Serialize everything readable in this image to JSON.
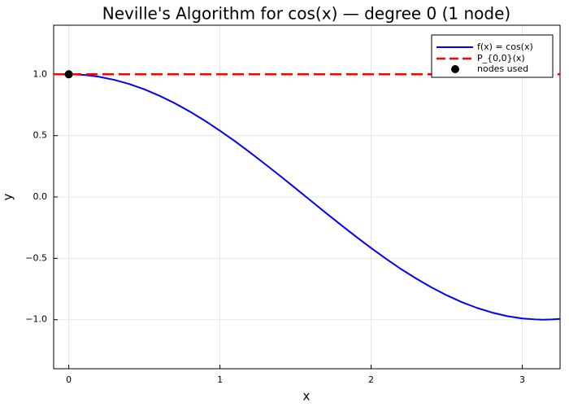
{
  "chart_data": {
    "type": "line",
    "title": "Neville's Algorithm for cos(x) — degree 0  (1 node)",
    "xlabel": "x",
    "ylabel": "y",
    "xlim": [
      -0.1,
      3.25
    ],
    "ylim": [
      -1.4,
      1.4
    ],
    "grid": true,
    "legend_position": "top-right",
    "x_ticks": [
      {
        "value": 0,
        "label": "0"
      },
      {
        "value": 1,
        "label": "1"
      },
      {
        "value": 2,
        "label": "2"
      },
      {
        "value": 3,
        "label": "3"
      }
    ],
    "y_ticks": [
      {
        "value": 1.0,
        "label": "1.0"
      },
      {
        "value": 0.5,
        "label": "0.5"
      },
      {
        "value": 0.0,
        "label": "0.0"
      },
      {
        "value": -0.5,
        "label": "−0.5"
      },
      {
        "value": -1.0,
        "label": "−1.0"
      }
    ],
    "series": [
      {
        "name": "f(x) = cos(x)",
        "style": "solid",
        "color": "#0000ff",
        "x": [
          0,
          0.1,
          0.2,
          0.3,
          0.4,
          0.5,
          0.6,
          0.7,
          0.8,
          0.9,
          1.0,
          1.1,
          1.2,
          1.3,
          1.4,
          1.5,
          1.6,
          1.7,
          1.8,
          1.9,
          2.0,
          2.1,
          2.2,
          2.3,
          2.4,
          2.5,
          2.6,
          2.7,
          2.8,
          2.9,
          3.0,
          3.1,
          3.1416,
          3.2,
          3.25
        ],
        "y": [
          1.0,
          0.995,
          0.98,
          0.955,
          0.921,
          0.878,
          0.825,
          0.765,
          0.697,
          0.622,
          0.54,
          0.454,
          0.362,
          0.267,
          0.17,
          0.071,
          -0.029,
          -0.129,
          -0.227,
          -0.323,
          -0.416,
          -0.505,
          -0.589,
          -0.666,
          -0.737,
          -0.801,
          -0.857,
          -0.904,
          -0.942,
          -0.971,
          -0.99,
          -0.999,
          -1.0,
          -0.998,
          -0.994
        ]
      },
      {
        "name": "P_{0,0}(x)",
        "style": "dashed",
        "color": "#ff0000",
        "x": [
          -0.1,
          3.25
        ],
        "y": [
          1.0,
          1.0
        ]
      }
    ],
    "points": {
      "name": "nodes used",
      "color": "#000000",
      "x": [
        0
      ],
      "y": [
        1.0
      ]
    }
  }
}
